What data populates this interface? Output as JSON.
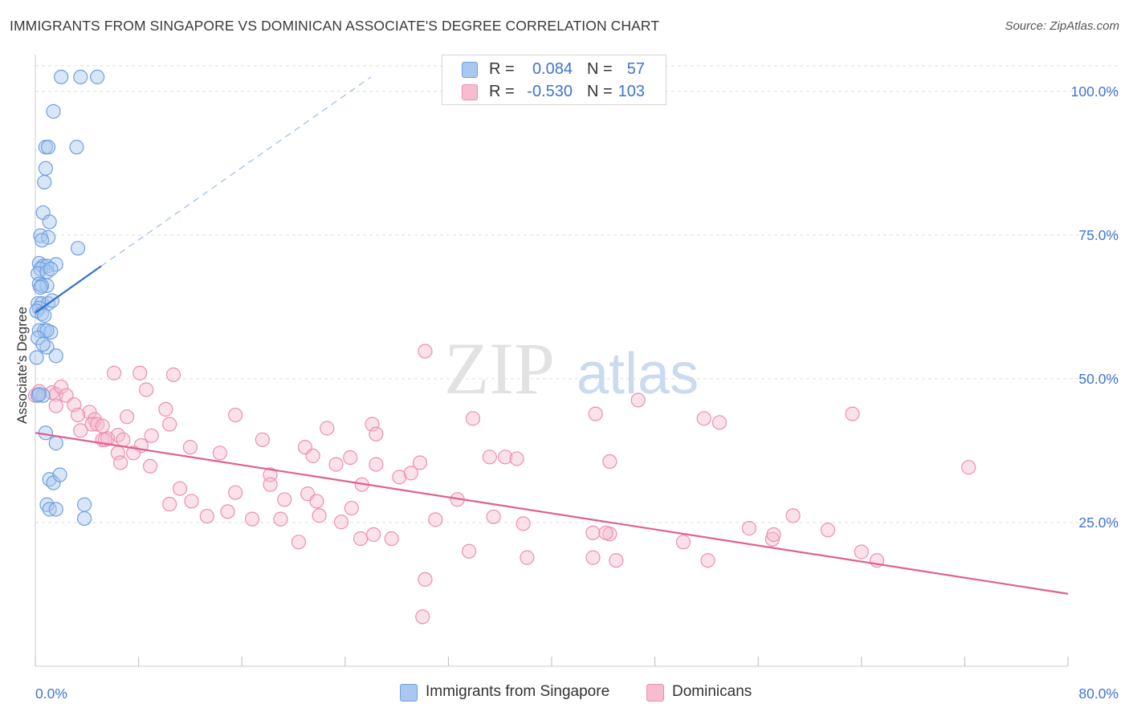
{
  "header": {
    "title": "IMMIGRANTS FROM SINGAPORE VS DOMINICAN ASSOCIATE'S DEGREE CORRELATION CHART",
    "source": "Source: ZipAtlas.com"
  },
  "watermark": {
    "zip": "ZIP",
    "atlas": "atlas"
  },
  "legend_top": {
    "rows": [
      {
        "r_label": "R =",
        "r_value": "0.084",
        "n_label": "N =",
        "n_value": "57"
      },
      {
        "r_label": "R =",
        "r_value": "-0.530",
        "n_label": "N =",
        "n_value": "103"
      }
    ]
  },
  "legend_bottom": {
    "series1": "Immigrants from Singapore",
    "series2": "Dominicans"
  },
  "colors": {
    "series1_fill": "#a9c8f0",
    "series1_stroke": "#6f9fe0",
    "series1_line": "#2f6fd0",
    "series2_fill": "#f7bcd0",
    "series2_stroke": "#ec8fb0",
    "series2_line": "#e0608e",
    "axis_text": "#3f74d0",
    "grid": "#dddddd"
  },
  "chart_data": {
    "type": "scatter",
    "title": "IMMIGRANTS FROM SINGAPORE VS DOMINICAN ASSOCIATE'S DEGREE CORRELATION CHART",
    "xlabel": "",
    "ylabel": "Associate's Degree",
    "xlim": [
      0,
      80
    ],
    "ylim": [
      0,
      105
    ],
    "x_tick_labels": [
      "0.0%",
      "80.0%"
    ],
    "y_tick_labels": [
      "25.0%",
      "50.0%",
      "75.0%",
      "100.0%"
    ],
    "y_ticks": [
      25,
      50,
      75,
      100
    ],
    "grid": true,
    "legend_position": "top-center",
    "series": [
      {
        "name": "Immigrants from Singapore",
        "points": [
          [
            2.0,
            102.5
          ],
          [
            3.5,
            102.5
          ],
          [
            4.8,
            102.5
          ],
          [
            1.4,
            96.5
          ],
          [
            0.8,
            90.3
          ],
          [
            1.0,
            90.3
          ],
          [
            3.2,
            90.3
          ],
          [
            0.8,
            86.6
          ],
          [
            0.7,
            84.2
          ],
          [
            0.6,
            78.9
          ],
          [
            1.1,
            77.3
          ],
          [
            0.4,
            74.9
          ],
          [
            1.0,
            74.6
          ],
          [
            0.5,
            74.1
          ],
          [
            3.3,
            72.7
          ],
          [
            0.3,
            70.1
          ],
          [
            0.6,
            69.6
          ],
          [
            0.9,
            69.6
          ],
          [
            1.6,
            69.9
          ],
          [
            0.4,
            69.1
          ],
          [
            0.2,
            68.3
          ],
          [
            0.9,
            68.6
          ],
          [
            0.3,
            66.5
          ],
          [
            0.9,
            66.2
          ],
          [
            0.2,
            63.1
          ],
          [
            0.5,
            63.1
          ],
          [
            1.0,
            63.1
          ],
          [
            0.3,
            62.3
          ],
          [
            0.1,
            61.8
          ],
          [
            0.5,
            61.3
          ],
          [
            0.3,
            58.4
          ],
          [
            0.7,
            58.4
          ],
          [
            1.2,
            58.1
          ],
          [
            0.9,
            58.4
          ],
          [
            0.2,
            57.1
          ],
          [
            0.9,
            55.5
          ],
          [
            1.6,
            54.0
          ],
          [
            0.1,
            53.7
          ],
          [
            0.6,
            47.1
          ],
          [
            0.2,
            47.1
          ],
          [
            0.8,
            40.6
          ],
          [
            1.6,
            38.8
          ],
          [
            1.1,
            32.5
          ],
          [
            1.4,
            31.9
          ],
          [
            1.9,
            33.3
          ],
          [
            0.9,
            28.1
          ],
          [
            3.8,
            28.1
          ],
          [
            1.1,
            27.3
          ],
          [
            1.6,
            27.3
          ],
          [
            3.8,
            25.7
          ],
          [
            0.3,
            47.3
          ],
          [
            0.5,
            66.2
          ],
          [
            0.7,
            61.0
          ],
          [
            1.2,
            69.1
          ],
          [
            0.4,
            65.9
          ],
          [
            1.3,
            63.6
          ],
          [
            0.6,
            56.0
          ]
        ]
      },
      {
        "name": "Dominicans",
        "points": [
          [
            0.0,
            47.1
          ],
          [
            0.3,
            47.8
          ],
          [
            1.3,
            47.6
          ],
          [
            1.6,
            47.3
          ],
          [
            2.0,
            48.6
          ],
          [
            2.4,
            47.1
          ],
          [
            1.6,
            45.3
          ],
          [
            3.0,
            45.5
          ],
          [
            4.2,
            44.2
          ],
          [
            4.6,
            42.9
          ],
          [
            3.3,
            43.7
          ],
          [
            4.4,
            42.1
          ],
          [
            4.8,
            42.1
          ],
          [
            5.2,
            41.8
          ],
          [
            3.5,
            41.0
          ],
          [
            6.4,
            40.2
          ],
          [
            5.2,
            39.4
          ],
          [
            5.6,
            39.6
          ],
          [
            5.4,
            39.4
          ],
          [
            6.8,
            39.4
          ],
          [
            8.2,
            38.4
          ],
          [
            6.4,
            37.1
          ],
          [
            6.6,
            35.4
          ],
          [
            7.6,
            37.1
          ],
          [
            6.1,
            51.0
          ],
          [
            8.1,
            51.0
          ],
          [
            8.6,
            48.1
          ],
          [
            10.7,
            50.7
          ],
          [
            10.1,
            44.7
          ],
          [
            10.4,
            42.1
          ],
          [
            7.1,
            43.4
          ],
          [
            12.0,
            38.1
          ],
          [
            14.3,
            37.1
          ],
          [
            15.5,
            43.7
          ],
          [
            17.6,
            39.4
          ],
          [
            18.2,
            33.3
          ],
          [
            18.2,
            31.6
          ],
          [
            19.3,
            29.0
          ],
          [
            20.9,
            38.1
          ],
          [
            22.6,
            41.4
          ],
          [
            21.5,
            36.6
          ],
          [
            21.1,
            30.0
          ],
          [
            21.8,
            28.7
          ],
          [
            23.3,
            35.1
          ],
          [
            24.4,
            36.3
          ],
          [
            24.5,
            27.5
          ],
          [
            25.3,
            31.6
          ],
          [
            26.1,
            42.1
          ],
          [
            26.4,
            40.4
          ],
          [
            26.4,
            35.1
          ],
          [
            28.2,
            32.9
          ],
          [
            29.1,
            33.6
          ],
          [
            29.8,
            35.4
          ],
          [
            30.2,
            54.8
          ],
          [
            31.0,
            25.5
          ],
          [
            32.7,
            29.0
          ],
          [
            33.9,
            43.1
          ],
          [
            35.2,
            36.4
          ],
          [
            36.4,
            36.4
          ],
          [
            37.3,
            36.1
          ],
          [
            37.8,
            24.8
          ],
          [
            38.1,
            18.9
          ],
          [
            43.2,
            18.9
          ],
          [
            43.2,
            23.2
          ],
          [
            43.4,
            43.9
          ],
          [
            44.5,
            35.6
          ],
          [
            46.7,
            46.3
          ],
          [
            44.5,
            23.0
          ],
          [
            44.2,
            23.2
          ],
          [
            45.0,
            18.4
          ],
          [
            50.2,
            21.6
          ],
          [
            52.1,
            18.4
          ],
          [
            51.8,
            43.1
          ],
          [
            53.0,
            42.4
          ],
          [
            55.3,
            24.0
          ],
          [
            57.1,
            22.1
          ],
          [
            57.2,
            22.9
          ],
          [
            58.7,
            26.2
          ],
          [
            61.4,
            23.7
          ],
          [
            63.3,
            43.9
          ],
          [
            64.0,
            19.9
          ],
          [
            65.2,
            18.4
          ],
          [
            72.3,
            34.6
          ],
          [
            8.9,
            34.8
          ],
          [
            10.4,
            28.2
          ],
          [
            12.1,
            28.7
          ],
          [
            13.3,
            26.1
          ],
          [
            14.9,
            26.9
          ],
          [
            15.5,
            30.2
          ],
          [
            16.8,
            25.6
          ],
          [
            19.0,
            25.6
          ],
          [
            20.4,
            21.6
          ],
          [
            22.0,
            26.2
          ],
          [
            23.7,
            25.1
          ],
          [
            25.2,
            22.2
          ],
          [
            26.2,
            22.9
          ],
          [
            27.6,
            22.2
          ],
          [
            30.2,
            15.1
          ],
          [
            30.0,
            8.6
          ],
          [
            33.6,
            20.0
          ],
          [
            35.5,
            26.0
          ],
          [
            9.0,
            40.1
          ],
          [
            11.2,
            30.9
          ]
        ]
      }
    ],
    "trend_lines": [
      {
        "series": "Immigrants from Singapore",
        "solid": [
          [
            0.0,
            61.5
          ],
          [
            5.1,
            69.6
          ]
        ],
        "dashed": [
          [
            5.1,
            69.6
          ],
          [
            26.0,
            102.5
          ]
        ]
      },
      {
        "series": "Dominicans",
        "solid": [
          [
            0.0,
            40.6
          ],
          [
            80.0,
            12.6
          ]
        ]
      }
    ]
  }
}
